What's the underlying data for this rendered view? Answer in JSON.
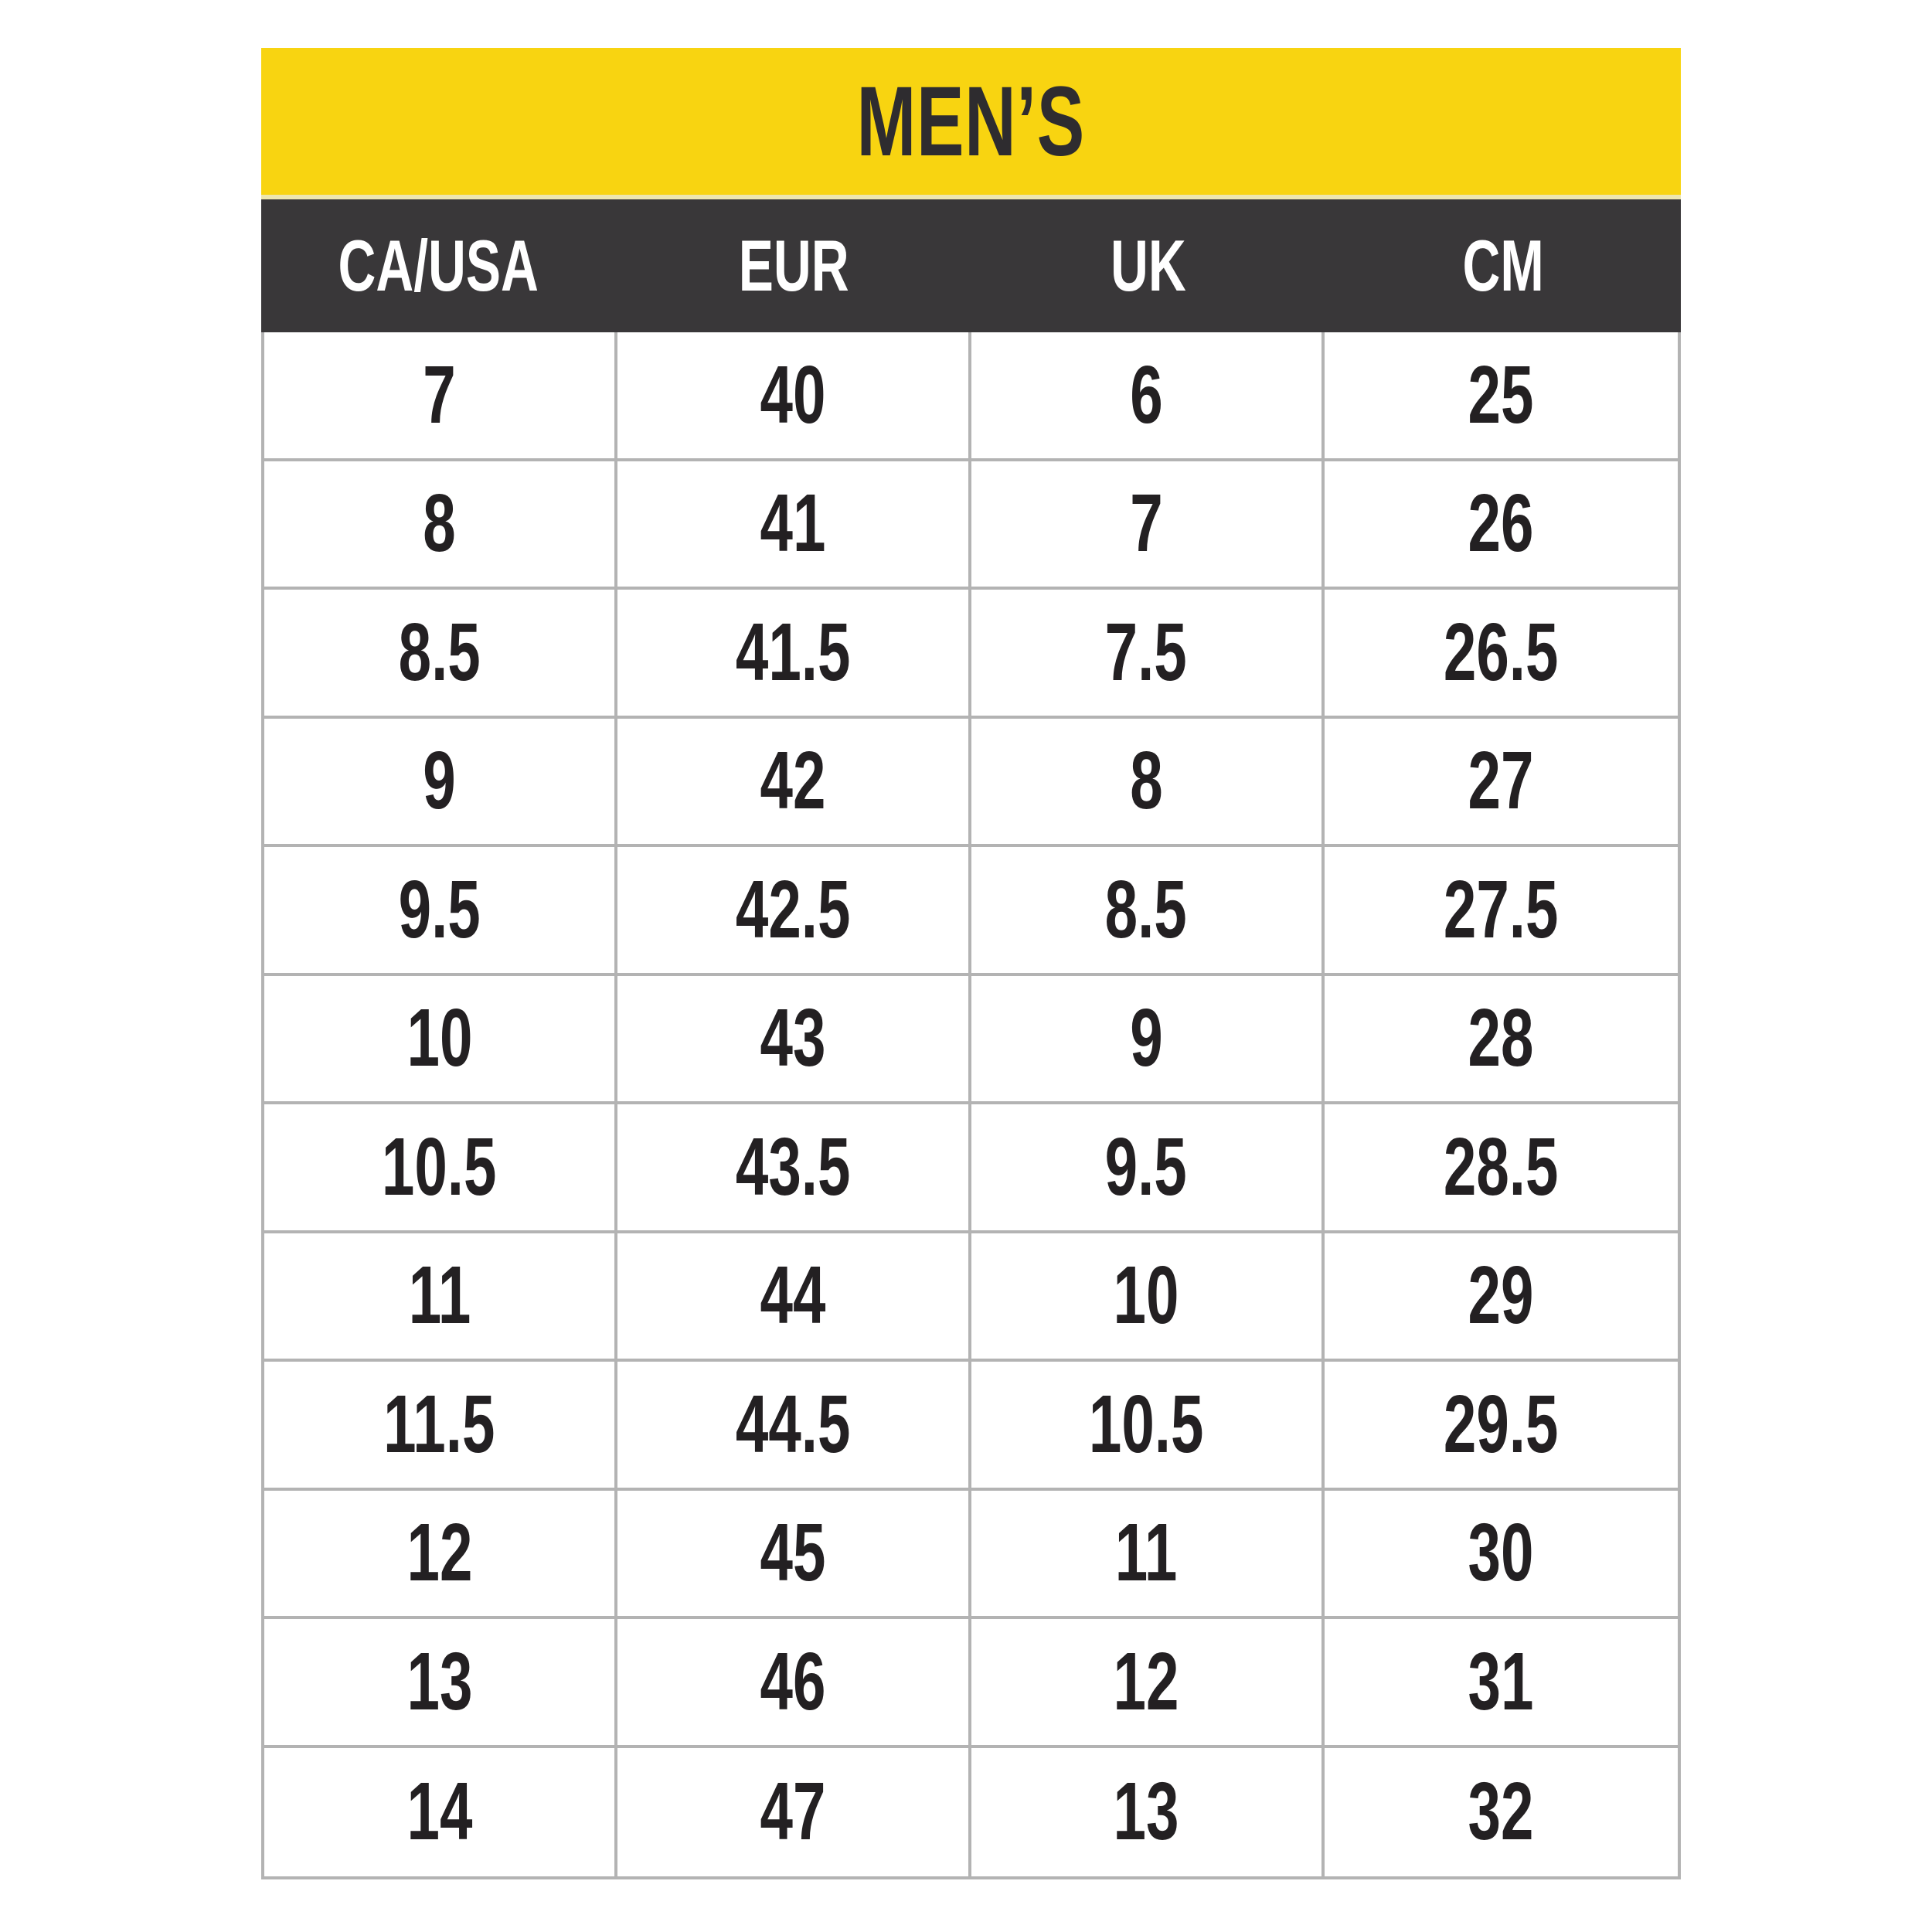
{
  "table": {
    "title": "MEN’S",
    "columns": [
      "CA/USA",
      "EUR",
      "UK",
      "CM"
    ],
    "rows": [
      [
        "7",
        "40",
        "6",
        "25"
      ],
      [
        "8",
        "41",
        "7",
        "26"
      ],
      [
        "8.5",
        "41.5",
        "7.5",
        "26.5"
      ],
      [
        "9",
        "42",
        "8",
        "27"
      ],
      [
        "9.5",
        "42.5",
        "8.5",
        "27.5"
      ],
      [
        "10",
        "43",
        "9",
        "28"
      ],
      [
        "10.5",
        "43.5",
        "9.5",
        "28.5"
      ],
      [
        "11",
        "44",
        "10",
        "29"
      ],
      [
        "11.5",
        "44.5",
        "10.5",
        "29.5"
      ],
      [
        "12",
        "45",
        "11",
        "30"
      ],
      [
        "13",
        "46",
        "12",
        "31"
      ],
      [
        "14",
        "47",
        "13",
        "32"
      ]
    ],
    "colors": {
      "banner_bg": "#F8D411",
      "banner_text": "#2E2C2F",
      "header_bg": "#393739",
      "header_text": "#FFFFFF",
      "cell_text": "#232022",
      "border": "#B3B3B3",
      "accent": "#EDE6AE"
    }
  }
}
